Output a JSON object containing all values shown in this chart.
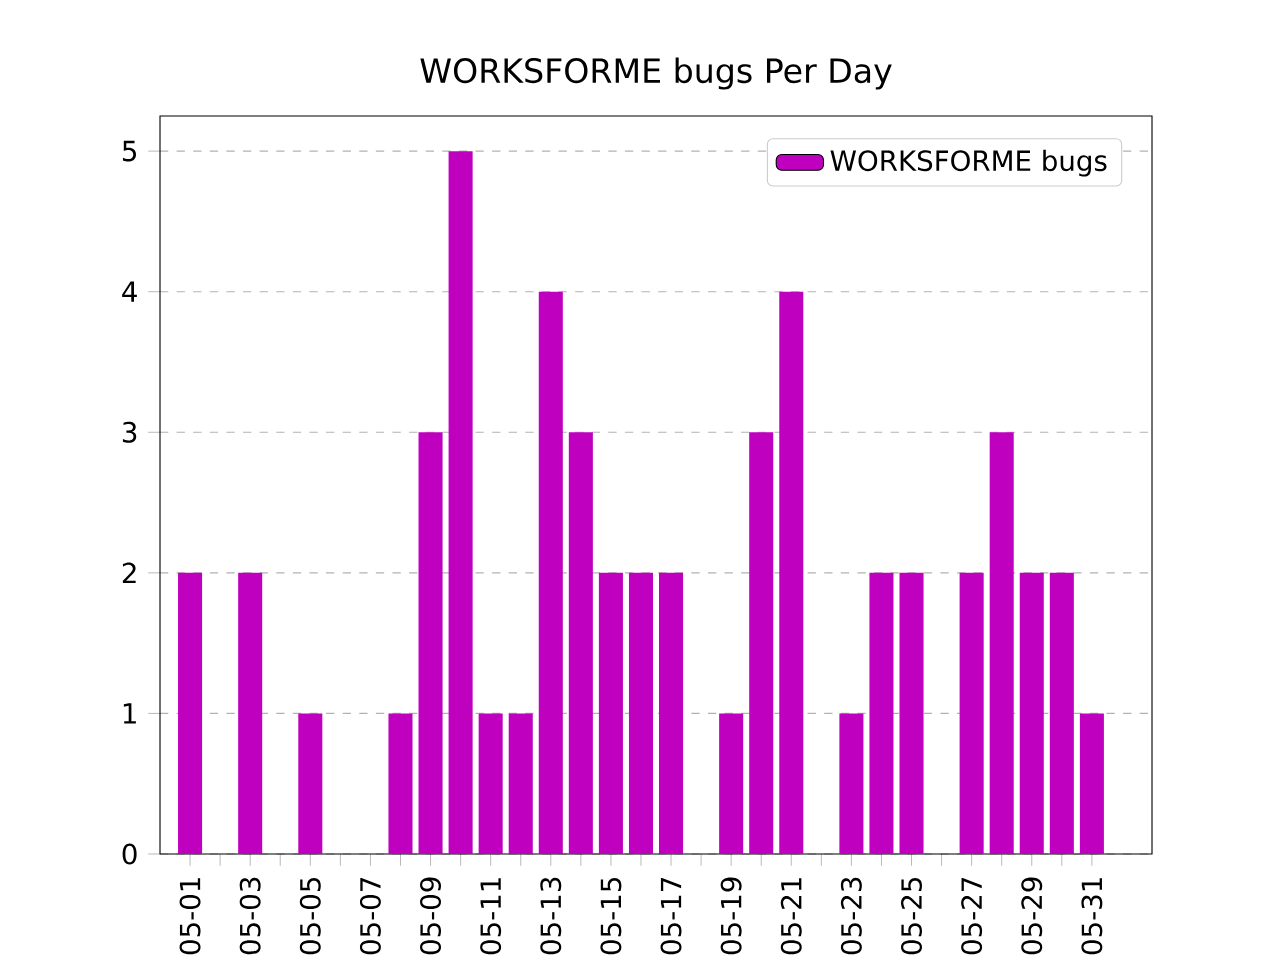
{
  "chart_data": {
    "type": "bar",
    "title": "WORKSFORME bugs Per Day",
    "categories": [
      "05-01",
      null,
      "05-03",
      null,
      "05-05",
      null,
      "05-07",
      null,
      "05-09",
      null,
      "05-11",
      null,
      "05-13",
      null,
      "05-15",
      null,
      "05-17",
      null,
      "05-19",
      null,
      "05-21",
      null,
      "05-23",
      null,
      "05-25",
      null,
      "05-27",
      null,
      "05-29",
      null,
      "05-31"
    ],
    "series": [
      {
        "name": "WORKSFORME bugs",
        "color": "#bf00bf",
        "values": [
          2,
          0,
          2,
          0,
          1,
          0,
          0,
          1,
          3,
          5,
          1,
          1,
          4,
          3,
          2,
          2,
          2,
          0,
          1,
          3,
          4,
          0,
          1,
          2,
          2,
          0,
          2,
          3,
          2,
          2,
          1
        ]
      }
    ],
    "ylim": [
      0,
      5.25
    ],
    "yticks": [
      0,
      1,
      2,
      3,
      4,
      5
    ],
    "grid": "y",
    "legend": "top right"
  }
}
